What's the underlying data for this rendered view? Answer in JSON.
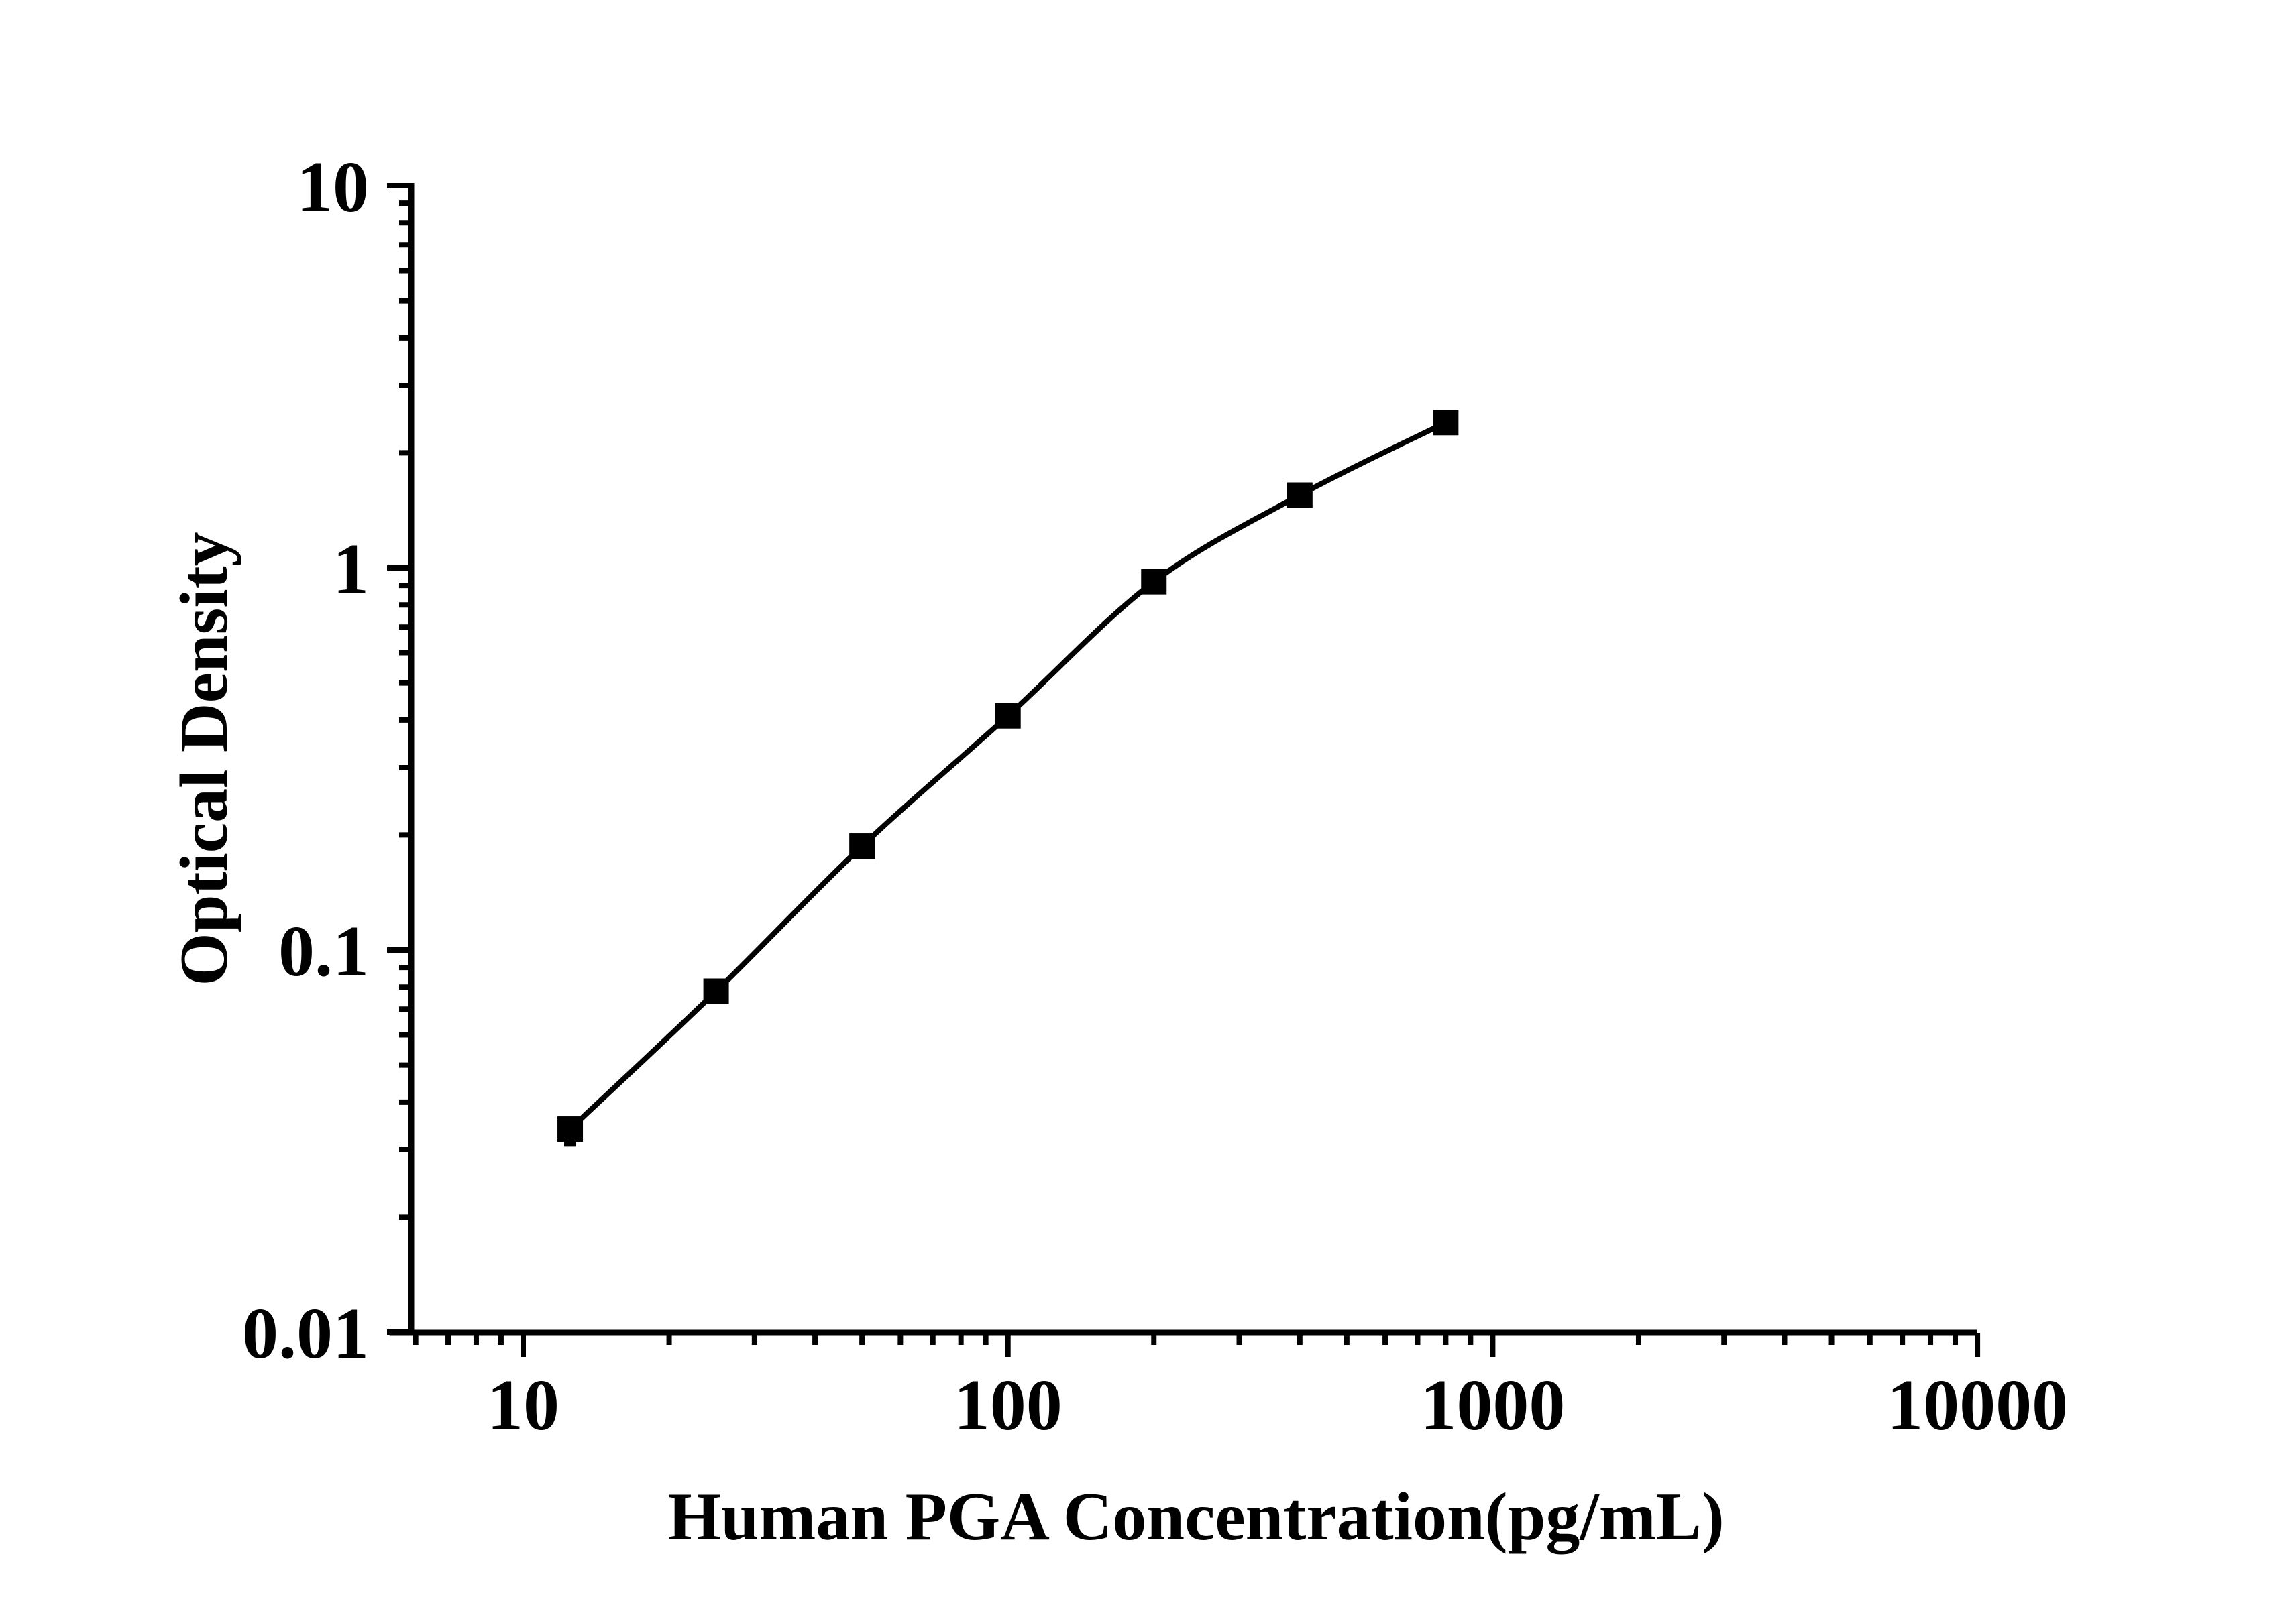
{
  "figure": {
    "background_color": "#ffffff",
    "ink_color": "#000000"
  },
  "chart_data": {
    "type": "line",
    "title": "",
    "xlabel": "Human PGA Concentration(pg/mL)",
    "ylabel": "Optical Density",
    "x_scale": "log10",
    "y_scale": "log10",
    "xlim": [
      5.3,
      10000
    ],
    "ylim": [
      0.01,
      10
    ],
    "grid": false,
    "legend": "none",
    "x_ticks": [
      {
        "value": 10,
        "label": "10"
      },
      {
        "value": 100,
        "label": "100"
      },
      {
        "value": 1000,
        "label": "1000"
      },
      {
        "value": 10000,
        "label": "10000"
      }
    ],
    "y_ticks": [
      {
        "value": 10,
        "label": "10"
      },
      {
        "value": 1,
        "label": "1"
      },
      {
        "value": 0.1,
        "label": "0.1"
      },
      {
        "value": 0.01,
        "label": "0.01"
      }
    ],
    "minor_tick_multipliers": [
      2,
      3,
      4,
      5,
      6,
      7,
      8,
      9
    ],
    "series": [
      {
        "marker": "filled-square",
        "line_style": "solid",
        "color": "#000000",
        "points": [
          {
            "x": 12.5,
            "od": 0.034,
            "od_error_low": 0.031
          },
          {
            "x": 25,
            "od": 0.078
          },
          {
            "x": 50,
            "od": 0.187
          },
          {
            "x": 100,
            "od": 0.41
          },
          {
            "x": 200,
            "od": 0.92
          },
          {
            "x": 400,
            "od": 1.55
          },
          {
            "x": 800,
            "od": 2.4
          }
        ]
      }
    ]
  }
}
